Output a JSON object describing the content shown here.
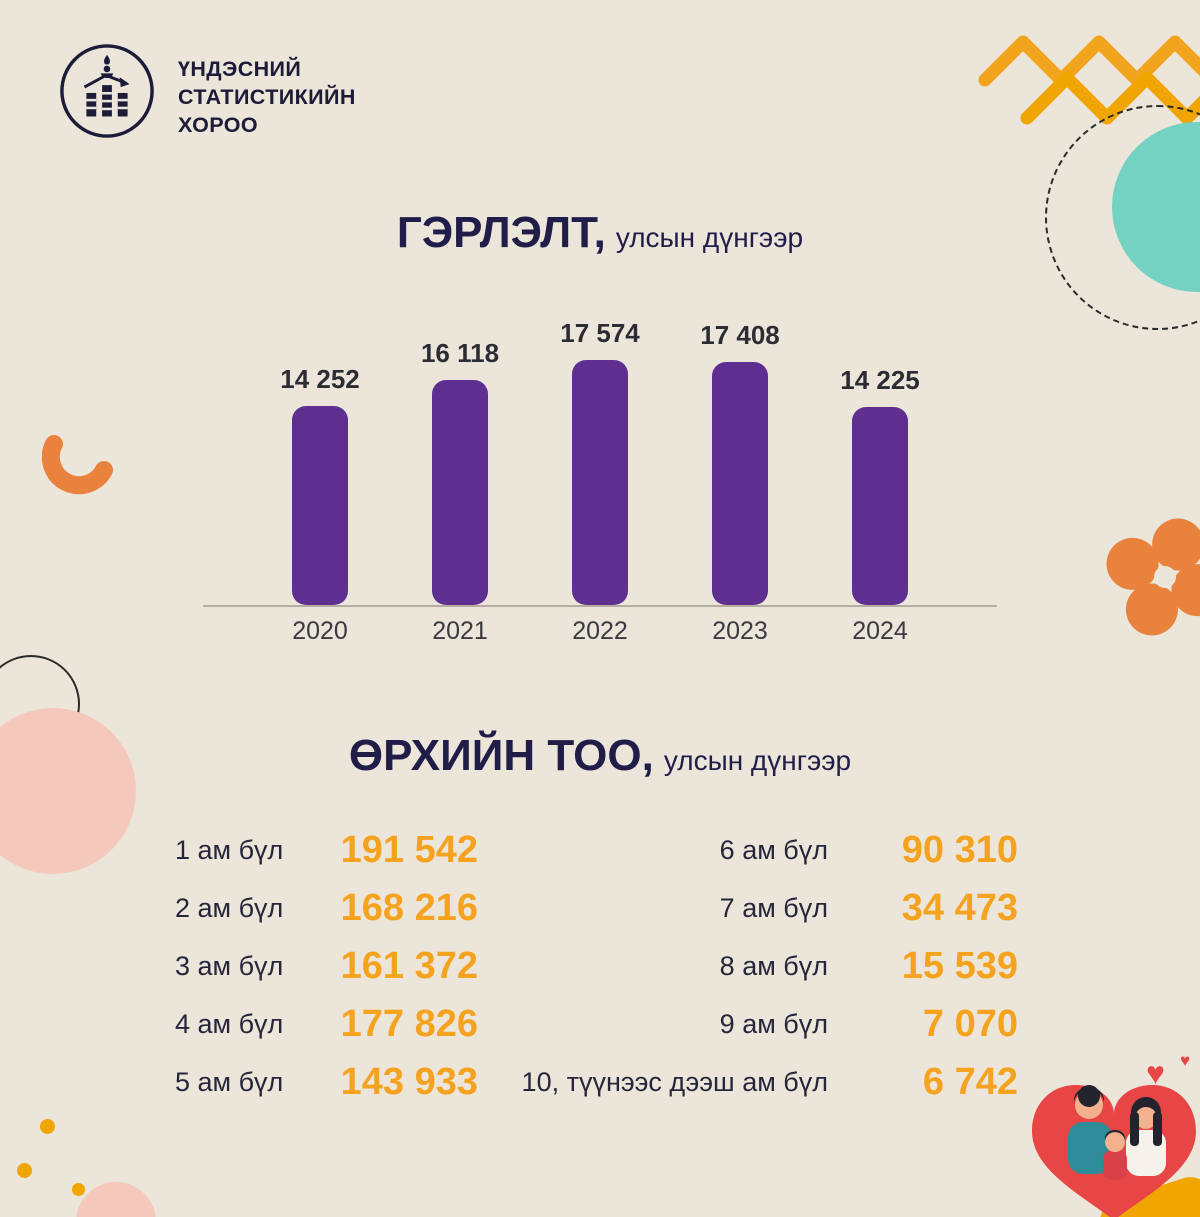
{
  "org": {
    "line1": "ҮНДЭСНИЙ",
    "line2": "СТАТИСТИКИЙН",
    "line3": "ХОРОО"
  },
  "marriage_section": {
    "title": "ГЭРЛЭЛТ,",
    "subtitle": "улсын дүнгээр"
  },
  "households": {
    "title": "ӨРХИЙН ТОО,",
    "subtitle": "улсын дүнгээр"
  },
  "chart_data": [
    {
      "type": "bar",
      "title": "ГЭРЛЭЛТ, улсын дүнгээр",
      "categories": [
        "2020",
        "2021",
        "2022",
        "2023",
        "2024"
      ],
      "values": [
        14252,
        16118,
        17574,
        17408,
        14225
      ],
      "value_labels": [
        "14 252",
        "16 118",
        "17 574",
        "17 408",
        "14 225"
      ],
      "xlabel": "",
      "ylabel": "",
      "ylim": [
        0,
        17574
      ],
      "grid": false,
      "legend": false,
      "bar_color": "#5e2f91"
    },
    {
      "type": "table",
      "title": "ӨРХИЙН ТОО, улсын дүнгээр",
      "categories": [
        "1 ам бүл",
        "2 ам бүл",
        "3 ам бүл",
        "4 ам бүл",
        "5 ам бүл",
        "6 ам бүл",
        "7 ам бүл",
        "8 ам бүл",
        "9 ам бүл",
        "10, түүнээс дээш ам бүл"
      ],
      "values": [
        191542,
        168216,
        161372,
        177826,
        143933,
        90310,
        34473,
        15539,
        7070,
        6742
      ],
      "value_labels": [
        "191 542",
        "168 216",
        "161 372",
        "177 826",
        "143 933",
        "90 310",
        "34 473",
        "15 539",
        "7 070",
        "6 742"
      ]
    }
  ],
  "colors": {
    "background": "#ece5da",
    "bar_purple": "#5e2f91",
    "value_orange": "#f5a31f",
    "title_navy": "#201d49",
    "teal": "#74d2c2",
    "pink": "#f5c8bc",
    "heart_red": "#e84545",
    "deco_orange": "#e8823c",
    "zigzag_orange": "#f2a51c"
  }
}
